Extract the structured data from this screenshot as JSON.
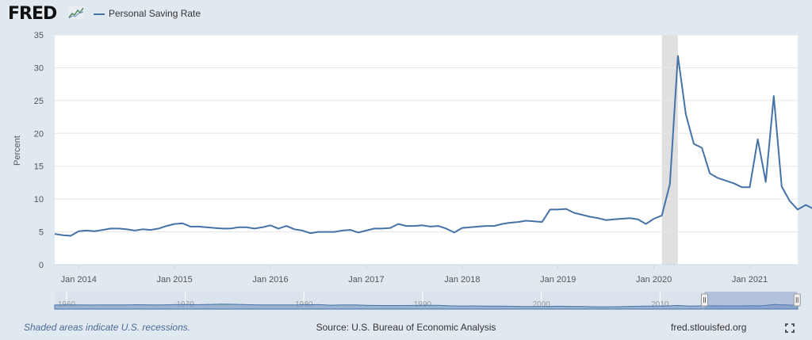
{
  "header": {
    "logo_text": "FRED",
    "logo_icon": "fred-chart-logo-icon",
    "legend_label": "Personal Saving Rate"
  },
  "footer": {
    "note": "Shaded areas indicate U.S. recessions.",
    "source": "Source: U.S. Bureau of Economic Analysis",
    "site": "fred.stlouisfed.org",
    "fullscreen_icon": "fullscreen-icon"
  },
  "colors": {
    "background": "#e1e9f0",
    "plot_background": "#ffffff",
    "series": "#4572a7",
    "recession": "#e0e0e0",
    "note_text": "#4a6a95"
  },
  "chart_data": {
    "type": "line",
    "ylabel": "Percent",
    "ylim": [
      0,
      35
    ],
    "yticks": [
      0,
      5,
      10,
      15,
      20,
      25,
      30,
      35
    ],
    "xlim": [
      "2013-10",
      "2021-07"
    ],
    "xticks": [
      {
        "date": "2014-01",
        "label": "Jan 2014"
      },
      {
        "date": "2015-01",
        "label": "Jan 2015"
      },
      {
        "date": "2016-01",
        "label": "Jan 2016"
      },
      {
        "date": "2017-01",
        "label": "Jan 2017"
      },
      {
        "date": "2018-01",
        "label": "Jan 2018"
      },
      {
        "date": "2019-01",
        "label": "Jan 2019"
      },
      {
        "date": "2020-01",
        "label": "Jan 2020"
      },
      {
        "date": "2021-01",
        "label": "Jan 2021"
      }
    ],
    "grid": "horizontal",
    "recessions": [
      {
        "start": "2020-02",
        "end": "2020-04"
      }
    ],
    "series": [
      {
        "name": "Personal Saving Rate",
        "start": "2013-10",
        "frequency": "monthly",
        "values": [
          4.7,
          4.5,
          4.4,
          5.1,
          5.2,
          5.1,
          5.3,
          5.5,
          5.5,
          5.4,
          5.2,
          5.4,
          5.3,
          5.5,
          5.9,
          6.2,
          6.3,
          5.8,
          5.8,
          5.7,
          5.6,
          5.5,
          5.5,
          5.7,
          5.7,
          5.5,
          5.7,
          6.0,
          5.5,
          5.9,
          5.4,
          5.2,
          4.8,
          5.0,
          5.0,
          5.0,
          5.2,
          5.3,
          4.9,
          5.2,
          5.5,
          5.5,
          5.6,
          6.2,
          5.9,
          5.9,
          6.0,
          5.8,
          5.9,
          5.5,
          4.9,
          5.6,
          5.7,
          5.8,
          5.9,
          5.9,
          6.2,
          6.4,
          6.5,
          6.7,
          6.6,
          6.5,
          8.4,
          8.4,
          8.5,
          7.9,
          7.6,
          7.3,
          7.1,
          6.8,
          6.9,
          7.0,
          7.1,
          6.9,
          6.2,
          7.0,
          7.5,
          12.3,
          31.8,
          22.9,
          18.4,
          17.8,
          13.9,
          13.2,
          12.8,
          12.4,
          11.8,
          11.8,
          19.1,
          12.6,
          25.7,
          11.9,
          9.7,
          8.4,
          9.1,
          8.5
        ]
      }
    ],
    "navigator": {
      "ticks": [
        {
          "year": 1960,
          "label": "1960"
        },
        {
          "year": 1970,
          "label": "1970"
        },
        {
          "year": 1980,
          "label": "1980"
        },
        {
          "year": 1990,
          "label": "1990"
        },
        {
          "year": 2000,
          "label": "2000"
        },
        {
          "year": 2010,
          "label": "2010"
        }
      ],
      "range": [
        1959,
        2021.6
      ],
      "selected": [
        2013.75,
        2021.55
      ],
      "overview_values": [
        11.0,
        11.2,
        11.6,
        10.8,
        11.5,
        11.8,
        11.6,
        12.4,
        11.5,
        11.8,
        12.6,
        13.3,
        12.2,
        13.9,
        14.8,
        14.0,
        12.8,
        11.8,
        11.7,
        11.6,
        11.8,
        12.0,
        12.6,
        10.4,
        11.6,
        11.4,
        9.8,
        8.7,
        9.0,
        8.7,
        9.1,
        9.4,
        9.5,
        7.6,
        6.6,
        6.9,
        6.4,
        6.3,
        5.8,
        4.2,
        4.2,
        4.4,
        5.5,
        5.1,
        4.9,
        3.2,
        3.3,
        3.5,
        5.0,
        6.1,
        6.5,
        7.2,
        8.9,
        6.4,
        7.3,
        7.6,
        6.9,
        7.0,
        7.8,
        7.5,
        13.5,
        11.5,
        9.4
      ]
    }
  }
}
